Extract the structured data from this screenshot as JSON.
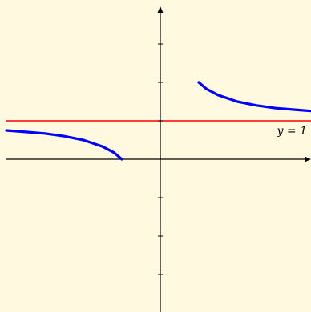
{
  "chart_data": {
    "type": "line",
    "title": "",
    "xlabel": "",
    "ylabel": "",
    "xlim": [
      -4,
      4
    ],
    "ylim": [
      -4,
      4
    ],
    "grid": false,
    "legend": "none",
    "x_ticks": [],
    "y_ticks": [
      -4,
      -3,
      -2,
      -1,
      1,
      2,
      3
    ],
    "series": [
      {
        "x": [
          -4.0,
          -3.5,
          -3.0,
          -2.5,
          -2.0,
          -1.5,
          -1.2,
          -1.0
        ],
        "y": [
          0.75,
          0.71,
          0.67,
          0.6,
          0.5,
          0.33,
          0.17,
          0.0
        ]
      },
      {
        "x": [
          1.0,
          1.2,
          1.5,
          2.0,
          2.5,
          3.0,
          3.5,
          4.0
        ],
        "y": [
          2.0,
          1.83,
          1.67,
          1.5,
          1.4,
          1.33,
          1.29,
          1.25
        ]
      }
    ],
    "asymptote": {
      "y": 1,
      "label": "y = 1"
    },
    "colors": {
      "curve": "#0000ff",
      "asymptote": "#ff0000",
      "axis": "#000000",
      "background": "#fff9e0"
    }
  }
}
